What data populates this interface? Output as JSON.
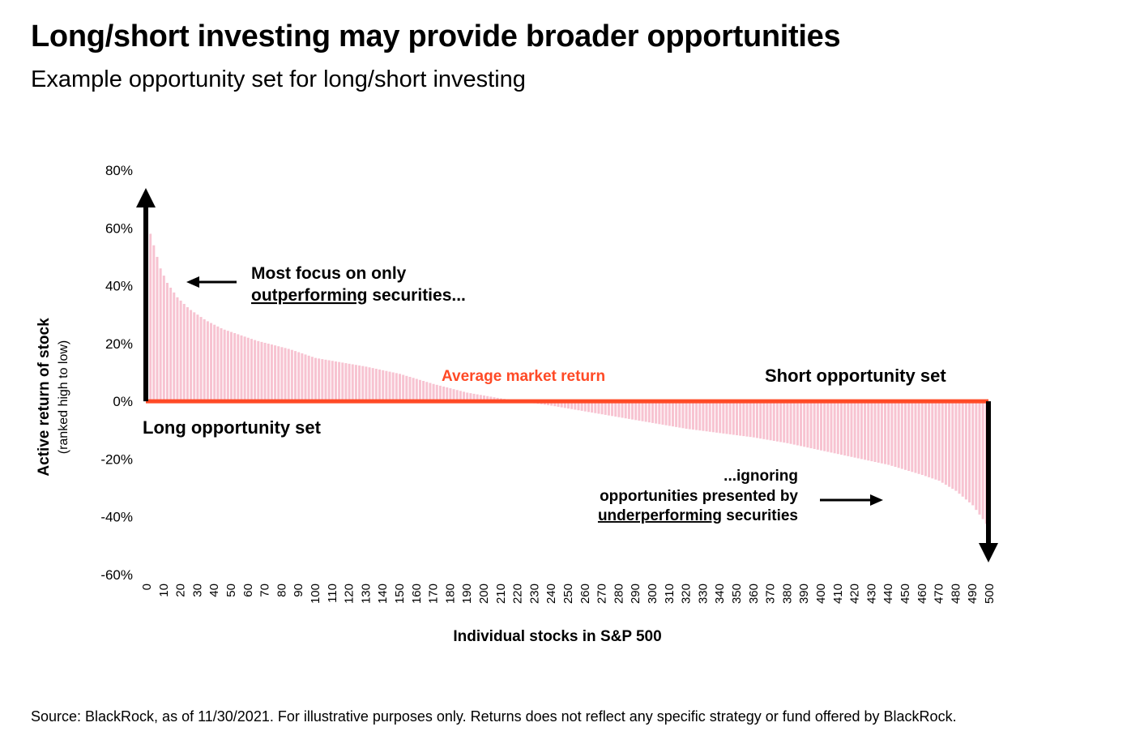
{
  "header": {
    "title": "Long/short investing may provide broader opportunities",
    "subtitle": "Example opportunity set for long/short investing"
  },
  "footer": {
    "source": "Source: BlackRock, as of 11/30/2021. For illustrative purposes only. Returns does not reflect any specific strategy or fund offered by BlackRock."
  },
  "colors": {
    "bar": "#f7c3d1",
    "average_line": "#ff4a26",
    "average_label": "#ff4a26",
    "arrow": "#000000",
    "text": "#000000"
  },
  "chart_data": {
    "type": "bar",
    "ylabel": "Active return of stock",
    "ylabel_sub": "(ranked high to low)",
    "xlabel": "Individual stocks in S&P 500",
    "y_tick_labels": [
      "80%",
      "60%",
      "40%",
      "20%",
      "0%",
      "-20%",
      "-40%",
      "-60%"
    ],
    "y_ticks": [
      80,
      60,
      40,
      20,
      0,
      -20,
      -40,
      -60
    ],
    "ylim": [
      -60,
      80
    ],
    "x_ticks": [
      0,
      10,
      20,
      30,
      40,
      50,
      60,
      70,
      80,
      90,
      100,
      110,
      120,
      130,
      140,
      150,
      160,
      170,
      180,
      190,
      200,
      210,
      220,
      230,
      240,
      250,
      260,
      270,
      280,
      290,
      300,
      310,
      320,
      330,
      340,
      350,
      360,
      370,
      380,
      390,
      400,
      410,
      420,
      430,
      440,
      450,
      460,
      470,
      480,
      490,
      500
    ],
    "xlim": [
      0,
      500
    ],
    "average_market_return": 0,
    "active_return_profile": {
      "x": [
        0,
        2,
        5,
        8,
        12,
        18,
        25,
        35,
        45,
        55,
        65,
        75,
        85,
        100,
        115,
        130,
        150,
        170,
        190,
        210,
        225,
        240,
        260,
        280,
        300,
        320,
        340,
        360,
        380,
        400,
        420,
        440,
        460,
        470,
        480,
        490,
        495,
        500
      ],
      "y": [
        62,
        58,
        52,
        46,
        41,
        36,
        32,
        28,
        25,
        23,
        21,
        19.5,
        18,
        15,
        13.5,
        12,
        9.5,
        6,
        3,
        1,
        -0.3,
        -1.5,
        -3.5,
        -5.5,
        -7.5,
        -9.5,
        -11,
        -12.5,
        -14.5,
        -17,
        -19.5,
        -22,
        -25.5,
        -27.5,
        -31,
        -36,
        -40,
        -44
      ]
    },
    "annotations": {
      "long_focus_line1": "Most focus on only",
      "long_focus_underlined": "outperforming",
      "long_focus_rest": " securities...",
      "average_market_return": "Average market return",
      "short_set": "Short opportunity set",
      "long_set": "Long opportunity set",
      "short_ignore_line1": "...ignoring",
      "short_ignore_line2": "opportunities presented by",
      "short_ignore_underlined": "underperforming",
      "short_ignore_rest": " securities"
    }
  }
}
